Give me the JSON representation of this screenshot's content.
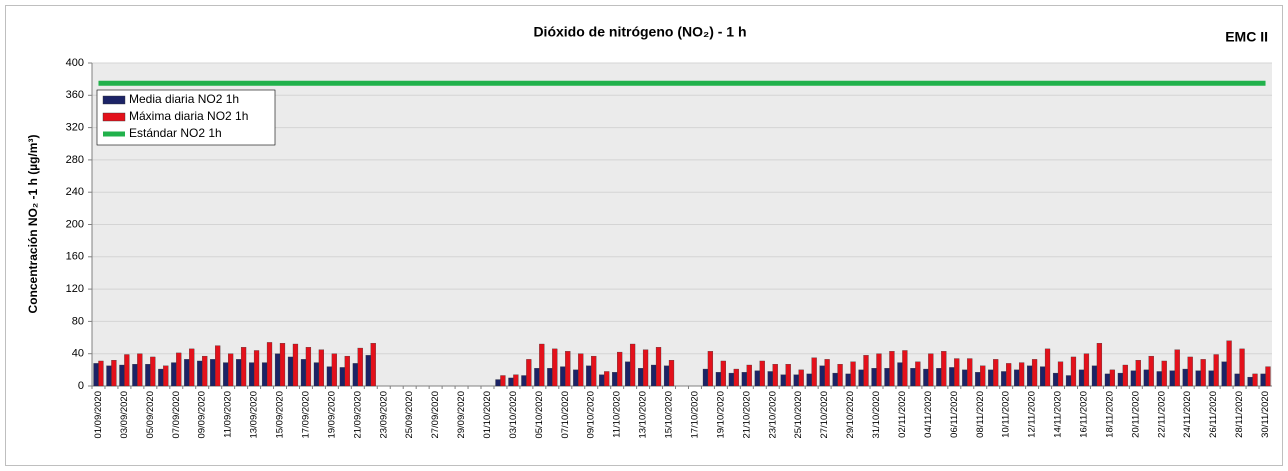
{
  "chart_data": {
    "type": "bar",
    "title": "Dióxido de nitrógeno (NO₂) - 1 h",
    "annotation": "EMC II",
    "y_label": "Concentración NO₂ -1 h (µg/m³)",
    "legend": "upper left",
    "grid": true,
    "ylim": [
      0,
      400
    ],
    "yticks": [
      0,
      40,
      80,
      120,
      160,
      200,
      240,
      280,
      320,
      360,
      400
    ],
    "categories": [
      "01/09/2020",
      null,
      "03/09/2020",
      null,
      "05/09/2020",
      null,
      "07/09/2020",
      null,
      "09/09/2020",
      null,
      "11/09/2020",
      null,
      "13/09/2020",
      null,
      "15/09/2020",
      null,
      "17/09/2020",
      null,
      "19/09/2020",
      null,
      "21/09/2020",
      null,
      "23/09/2020",
      null,
      "25/09/2020",
      null,
      "27/09/2020",
      null,
      "29/09/2020",
      null,
      "01/10/2020",
      null,
      "03/10/2020",
      null,
      "05/10/2020",
      null,
      "07/10/2020",
      null,
      "09/10/2020",
      null,
      "11/10/2020",
      null,
      "13/10/2020",
      null,
      "15/10/2020",
      null,
      "17/10/2020",
      null,
      "19/10/2020",
      null,
      "21/10/2020",
      null,
      "23/10/2020",
      null,
      "25/10/2020",
      null,
      "27/10/2020",
      null,
      "29/10/2020",
      null,
      "31/10/2020",
      null,
      "02/11/2020",
      null,
      "04/11/2020",
      null,
      "06/11/2020",
      null,
      "08/11/2020",
      null,
      "10/11/2020",
      null,
      "12/11/2020",
      null,
      "14/11/2020",
      null,
      "16/11/2020",
      null,
      "18/11/2020",
      null,
      "20/11/2020",
      null,
      "22/11/2020",
      null,
      "24/11/2020",
      null,
      "26/11/2020",
      null,
      "28/11/2020",
      null,
      "30/11/2020"
    ],
    "series": [
      {
        "name": "Media diaria NO2 1h",
        "color": "#1c2366",
        "kind": "bar",
        "values": [
          28,
          25,
          26,
          27,
          27,
          21,
          29,
          33,
          31,
          33,
          29,
          33,
          29,
          29,
          40,
          36,
          33,
          29,
          24,
          23,
          28,
          38,
          null,
          null,
          null,
          null,
          null,
          null,
          null,
          null,
          null,
          8,
          10,
          13,
          22,
          22,
          24,
          20,
          25,
          14,
          17,
          30,
          22,
          26,
          25,
          null,
          null,
          21,
          17,
          16,
          17,
          19,
          18,
          14,
          14,
          15,
          25,
          16,
          15,
          20,
          22,
          22,
          29,
          22,
          21,
          22,
          23,
          20,
          17,
          20,
          18,
          20,
          25,
          24,
          16,
          13,
          20,
          25,
          15,
          16,
          19,
          20,
          18,
          19,
          21,
          19,
          19,
          30,
          15,
          11,
          15
        ]
      },
      {
        "name": "Máxima diaria NO2 1h",
        "color": "#e3111b",
        "kind": "bar",
        "values": [
          31,
          32,
          39,
          40,
          36,
          25,
          41,
          46,
          37,
          50,
          40,
          48,
          44,
          54,
          53,
          52,
          48,
          45,
          40,
          37,
          47,
          53,
          null,
          null,
          null,
          null,
          null,
          null,
          null,
          null,
          null,
          13,
          14,
          33,
          52,
          46,
          43,
          40,
          37,
          18,
          42,
          52,
          45,
          48,
          32,
          null,
          null,
          43,
          31,
          21,
          26,
          31,
          27,
          27,
          20,
          35,
          33,
          27,
          30,
          38,
          40,
          43,
          44,
          30,
          40,
          43,
          34,
          34,
          25,
          33,
          28,
          29,
          33,
          46,
          30,
          36,
          40,
          53,
          20,
          26,
          32,
          37,
          31,
          45,
          36,
          33,
          39,
          56,
          46,
          15,
          24
        ]
      },
      {
        "name": "Estándar NO2 1h",
        "color": "#21b14b",
        "kind": "line",
        "values": [
          375,
          375,
          375,
          375,
          375,
          375,
          375,
          375,
          375,
          375,
          375,
          375,
          375,
          375,
          375,
          375,
          375,
          375,
          375,
          375,
          375,
          375,
          375,
          375,
          375,
          375,
          375,
          375,
          375,
          375,
          375,
          375,
          375,
          375,
          375,
          375,
          375,
          375,
          375,
          375,
          375,
          375,
          375,
          375,
          375,
          375,
          375,
          375,
          375,
          375,
          375,
          375,
          375,
          375,
          375,
          375,
          375,
          375,
          375,
          375,
          375,
          375,
          375,
          375,
          375,
          375,
          375,
          375,
          375,
          375,
          375,
          375,
          375,
          375,
          375,
          375,
          375,
          375,
          375,
          375,
          375,
          375,
          375,
          375,
          375,
          375,
          375,
          375,
          375,
          375,
          375
        ]
      }
    ]
  }
}
